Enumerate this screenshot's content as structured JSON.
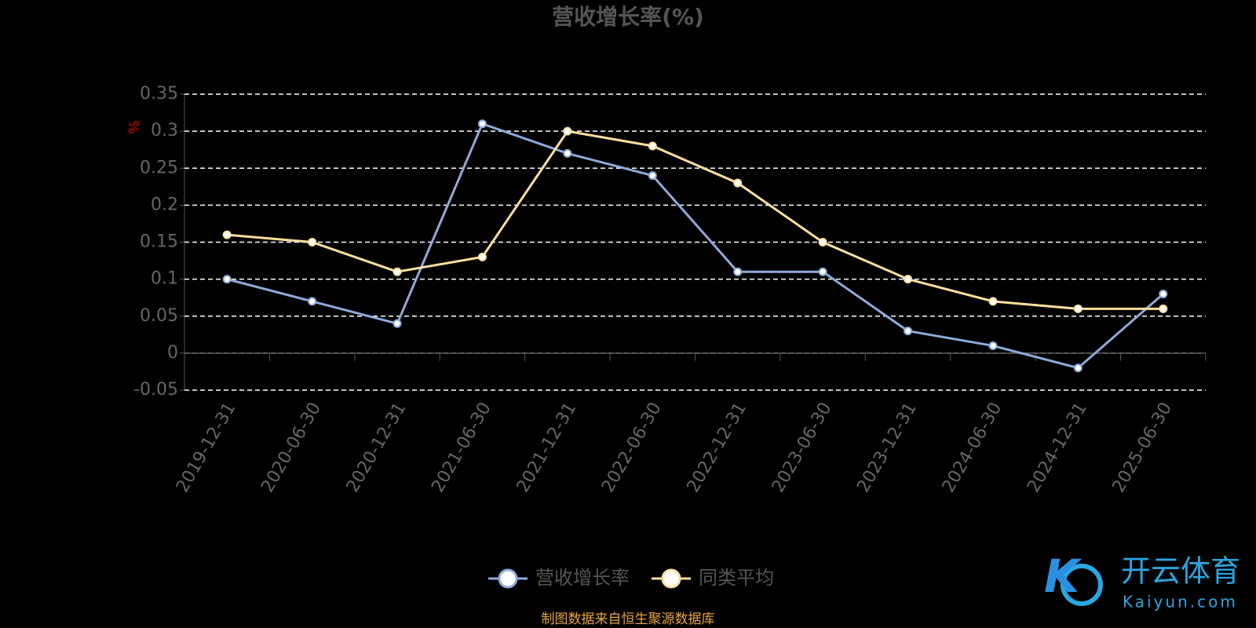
{
  "chart_data": {
    "type": "line",
    "title": "营收增长率(%)",
    "y_label": "%",
    "categories": [
      "2019-12-31",
      "2020-06-30",
      "2020-12-31",
      "2021-06-30",
      "2021-12-31",
      "2022-06-30",
      "2022-12-31",
      "2023-06-30",
      "2023-12-31",
      "2024-06-30",
      "2024-12-31",
      "2025-06-30"
    ],
    "series": [
      {
        "name": "营收增长率",
        "color": "#8eaadb",
        "values": [
          0.1,
          0.07,
          0.04,
          0.31,
          0.27,
          0.24,
          0.11,
          0.11,
          0.03,
          0.01,
          -0.02,
          0.08
        ]
      },
      {
        "name": "同类平均",
        "color": "#ffdf9e",
        "values": [
          0.16,
          0.15,
          0.11,
          0.13,
          0.3,
          0.28,
          0.23,
          0.15,
          0.1,
          0.07,
          0.06,
          0.06
        ]
      }
    ],
    "ylim": [
      -0.05,
      0.35
    ],
    "yticks": [
      -0.05,
      0,
      0.05,
      0.1,
      0.15,
      0.2,
      0.25,
      0.3,
      0.35
    ],
    "grid": true,
    "source": "制图数据来自恒生聚源数据库",
    "watermark": {
      "brand": "开云体育",
      "site": "Kaiyun.com"
    }
  }
}
